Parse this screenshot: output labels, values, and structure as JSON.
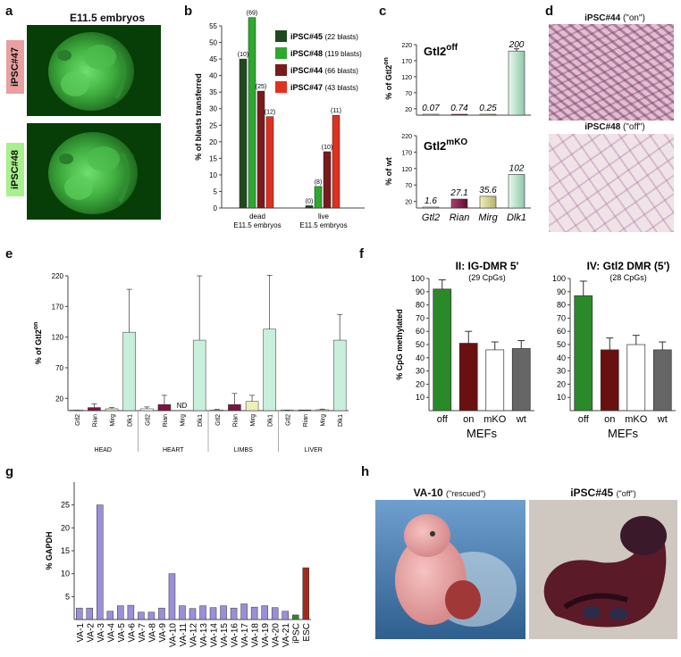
{
  "panels": {
    "a": {
      "label": "a",
      "title": "E11.5 embryos",
      "tags": [
        {
          "text": "iPSC#47",
          "color": "#e8a0a0"
        },
        {
          "text": "iPSC#48",
          "color": "#a8f08c"
        }
      ]
    },
    "b": {
      "label": "b",
      "legend": [
        {
          "name": "iPSC#45",
          "count": "(22 blasts)",
          "color": "#1f4a1f"
        },
        {
          "name": "iPSC#48",
          "count": "(119 blasts)",
          "color": "#2ea82e"
        },
        {
          "name": "iPSC#44",
          "count": "(66 blasts)",
          "color": "#7a1a1a"
        },
        {
          "name": "iPSC#47",
          "count": "(43 blasts)",
          "color": "#e03020"
        }
      ]
    },
    "c": {
      "label": "c",
      "top_title_main": "Gtl2",
      "top_title_sup": "off",
      "top_ylabel_main": "% of Gtl2",
      "top_ylabel_sup": "on",
      "bottom_title_main": "Gtl2",
      "bottom_title_sup": "mKO",
      "bottom_ylabel": "% of wt",
      "genes": [
        "Gtl2",
        "Rian",
        "Mirg",
        "Dlk1"
      ]
    },
    "d": {
      "label": "d",
      "top_caption_main": "iPSC#44",
      "top_caption_note": "(\"on\")",
      "bottom_caption_main": "iPSC#48",
      "bottom_caption_note": "(\"off\")"
    },
    "e": {
      "label": "e",
      "ylabel_main": "% of Gtl2",
      "ylabel_sup": "on",
      "nd_text": "ND",
      "genes": [
        "Gtl2",
        "Rian",
        "Mirg",
        "Dlk1"
      ]
    },
    "f": {
      "label": "f",
      "ylabel": "% CpG methylated",
      "xgroup": "MEFs",
      "charts": [
        {
          "title": "II: IG-DMR 5'",
          "subtitle": "(29 CpGs)"
        },
        {
          "title": "IV: Gtl2 DMR (5')",
          "subtitle": "(28 CpGs)"
        }
      ]
    },
    "g": {
      "label": "g",
      "ylabel": "% GAPDH"
    },
    "h": {
      "label": "h",
      "left_caption_main": "VA-10",
      "left_caption_note": "(\"rescued\")",
      "right_caption_main": "iPSC#45",
      "right_caption_note": "(\"off\")"
    }
  },
  "chart_data": [
    {
      "id": "b",
      "type": "bar",
      "ylabel": "% of blasts transferred",
      "ylim": [
        0,
        55
      ],
      "yticks": [
        0,
        5,
        10,
        15,
        20,
        25,
        30,
        35,
        40,
        45,
        50,
        55
      ],
      "categories": [
        "dead\nE11.5 embryos",
        "live\nE11.5 embryos"
      ],
      "series": [
        {
          "name": "iPSC#45",
          "color": "#1f4a1f",
          "values": [
            45,
            0.7
          ],
          "labels": [
            "(10)",
            "(0)"
          ]
        },
        {
          "name": "iPSC#48",
          "color": "#2ea82e",
          "values": [
            57.5,
            6.5
          ],
          "labels": [
            "(69)",
            "(8)"
          ]
        },
        {
          "name": "iPSC#44",
          "color": "#7a1a1a",
          "values": [
            35.3,
            17
          ],
          "labels": [
            "(25)",
            "(10)"
          ]
        },
        {
          "name": "iPSC#47",
          "color": "#e03020",
          "values": [
            27.6,
            28
          ],
          "labels": [
            "(12)",
            "(11)"
          ]
        }
      ]
    },
    {
      "id": "c-top",
      "type": "bar",
      "categories": [
        "Gtl2",
        "Rian",
        "Mirg",
        "Dlk1"
      ],
      "values": [
        0.07,
        0.74,
        0.25,
        200
      ],
      "labels": [
        "0.07",
        "0.74",
        "0.25",
        "200"
      ],
      "ylim": [
        0,
        220
      ],
      "yticks": [
        20,
        70,
        120,
        170,
        220
      ]
    },
    {
      "id": "c-bottom",
      "type": "bar",
      "categories": [
        "Gtl2",
        "Rian",
        "Mirg",
        "Dlk1"
      ],
      "values": [
        1.6,
        27.1,
        35.6,
        102
      ],
      "labels": [
        "1.6",
        "27.1",
        "35.6",
        "102"
      ],
      "ylim": [
        0,
        220
      ],
      "yticks": [
        20,
        70,
        120,
        170,
        220
      ]
    },
    {
      "id": "e",
      "type": "bar",
      "ylim": [
        0,
        220
      ],
      "yticks": [
        20,
        70,
        120,
        170,
        220
      ],
      "groups": [
        "HEAD",
        "HEART",
        "LIMBS",
        "LIVER"
      ],
      "genes": [
        "Gtl2",
        "Rian",
        "Mirg",
        "Dlk1"
      ],
      "values": [
        [
          0.5,
          5,
          3,
          128
        ],
        [
          3,
          10,
          0,
          115
        ],
        [
          1,
          10,
          15,
          133
        ],
        [
          0.5,
          0.5,
          1.5,
          115
        ]
      ],
      "errors": [
        [
          0.5,
          6,
          2,
          70
        ],
        [
          3,
          15,
          0,
          105
        ],
        [
          1,
          18,
          10,
          88
        ],
        [
          0.2,
          0.2,
          1,
          42
        ]
      ]
    },
    {
      "id": "f-left",
      "type": "bar",
      "ylabel": "% CpG methylated",
      "ylim": [
        0,
        100
      ],
      "yticks": [
        10,
        20,
        30,
        40,
        50,
        60,
        70,
        80,
        90,
        100
      ],
      "categories": [
        "off",
        "on",
        "mKO",
        "wt"
      ],
      "values": [
        92,
        51,
        46,
        47
      ],
      "errors": [
        7,
        9,
        6,
        6
      ]
    },
    {
      "id": "f-right",
      "type": "bar",
      "ylim": [
        0,
        100
      ],
      "yticks": [
        10,
        20,
        30,
        40,
        50,
        60,
        70,
        80,
        90,
        100
      ],
      "categories": [
        "off",
        "on",
        "mKO",
        "wt"
      ],
      "values": [
        87,
        46,
        50,
        46
      ],
      "errors": [
        11,
        9,
        7,
        6
      ]
    },
    {
      "id": "g",
      "type": "bar",
      "ylabel": "% GAPDH",
      "ylim": [
        0,
        30
      ],
      "yticks": [
        5,
        10,
        15,
        20,
        25
      ],
      "categories": [
        "VA-1",
        "VA-2",
        "VA-3",
        "VA-4",
        "VA-5",
        "VA-6",
        "VA-7",
        "VA-8",
        "VA-9",
        "VA-10",
        "VA-11",
        "VA-12",
        "VA-13",
        "VA-14",
        "VA-15",
        "VA-16",
        "VA-17",
        "VA-18",
        "VA-19",
        "VA-20",
        "VA-21",
        "iPSC",
        "ESC"
      ],
      "values": [
        2.5,
        2.5,
        25,
        1.8,
        3,
        3.1,
        1.6,
        1.6,
        2.5,
        10,
        3,
        2.4,
        3,
        2.6,
        3,
        2.5,
        3.4,
        2.7,
        3,
        2.6,
        1.8,
        1,
        11.3
      ]
    }
  ]
}
